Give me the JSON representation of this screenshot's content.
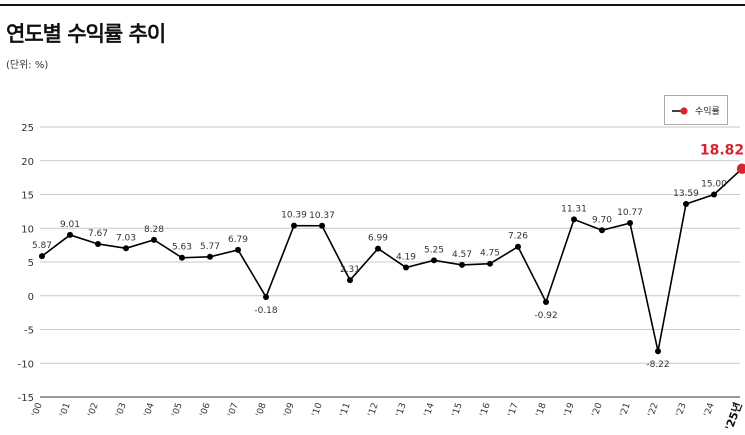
{
  "title": "연도별 수익률 추이",
  "unit": "(단위: %)",
  "chart_data": {
    "type": "line",
    "categories": [
      "'00",
      "'01",
      "'02",
      "'03",
      "'04",
      "'05",
      "'06",
      "'07",
      "'08",
      "'09",
      "'10",
      "'11",
      "'12",
      "'13",
      "'14",
      "'15",
      "'16",
      "'17",
      "'18",
      "'19",
      "'20",
      "'21",
      "'22",
      "'23",
      "'24",
      "'25년"
    ],
    "series": [
      {
        "name": "수익률",
        "values": [
          5.87,
          9.01,
          7.67,
          7.03,
          8.28,
          5.63,
          5.77,
          6.79,
          -0.18,
          10.39,
          10.37,
          2.31,
          6.99,
          4.19,
          5.25,
          4.57,
          4.75,
          7.26,
          -0.92,
          11.31,
          9.7,
          10.77,
          -8.22,
          13.59,
          15.0,
          18.82
        ],
        "labels": [
          "5.87",
          "9.01",
          "7.67",
          "7.03",
          "8.28",
          "5.63",
          "5.77",
          "6.79",
          "-0.18",
          "10.39",
          "10.37",
          "2.31",
          "6.99",
          "4.19",
          "5.25",
          "4.57",
          "4.75",
          "7.26",
          "-0.92",
          "11.31",
          "9.70",
          "10.77",
          "-8.22",
          "13.59",
          "15.00",
          "18.82"
        ]
      }
    ],
    "yticks": [
      "25",
      "20",
      "15",
      "10",
      "5",
      "0",
      "-5",
      "-10",
      "-15"
    ],
    "ylim": [
      -15,
      25
    ],
    "grid": true,
    "legend": "top-right",
    "line_color": "#000000",
    "highlight_color": "#d7252c"
  }
}
